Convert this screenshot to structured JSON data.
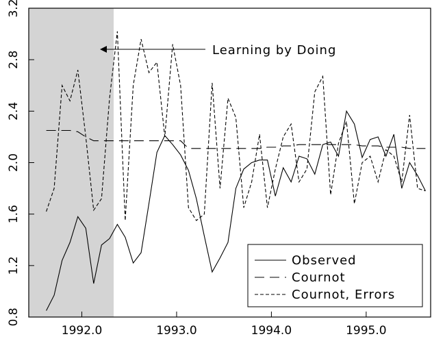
{
  "chart_data": {
    "type": "line",
    "x": [
      1991.625,
      1991.708,
      1991.792,
      1991.875,
      1991.958,
      1992.042,
      1992.125,
      1992.208,
      1992.292,
      1992.375,
      1992.458,
      1992.542,
      1992.625,
      1992.708,
      1992.792,
      1992.875,
      1992.958,
      1993.042,
      1993.125,
      1993.208,
      1993.292,
      1993.375,
      1993.458,
      1993.542,
      1993.625,
      1993.708,
      1993.792,
      1993.875,
      1993.958,
      1994.042,
      1994.125,
      1994.208,
      1994.292,
      1994.375,
      1994.458,
      1994.542,
      1994.625,
      1994.708,
      1994.792,
      1994.875,
      1994.958,
      1995.042,
      1995.125,
      1995.208,
      1995.292,
      1995.375,
      1995.458,
      1995.542,
      1995.625
    ],
    "series": [
      {
        "name": "Observed",
        "color": "#000000",
        "dash": "none",
        "values": [
          0.85,
          0.97,
          1.24,
          1.38,
          1.58,
          1.49,
          1.06,
          1.36,
          1.41,
          1.52,
          1.42,
          1.22,
          1.3,
          1.68,
          2.08,
          2.21,
          2.14,
          2.06,
          1.94,
          1.72,
          1.43,
          1.15,
          1.26,
          1.38,
          1.8,
          1.95,
          2.0,
          2.02,
          2.02,
          1.74,
          1.96,
          1.85,
          2.05,
          2.03,
          1.91,
          2.14,
          2.16,
          2.05,
          2.4,
          2.3,
          2.04,
          2.18,
          2.2,
          2.05,
          2.22,
          1.8,
          2.0,
          1.9,
          1.78
        ]
      },
      {
        "name": "Cournot",
        "color": "#000000",
        "dash": "14,8",
        "values": [
          2.25,
          2.25,
          2.25,
          2.25,
          2.24,
          2.2,
          2.17,
          2.17,
          2.17,
          2.17,
          2.17,
          2.17,
          2.17,
          2.17,
          2.17,
          2.17,
          2.17,
          2.17,
          2.11,
          2.11,
          2.11,
          2.11,
          2.11,
          2.11,
          2.11,
          2.11,
          2.11,
          2.11,
          2.12,
          2.12,
          2.13,
          2.13,
          2.14,
          2.14,
          2.14,
          2.14,
          2.14,
          2.14,
          2.14,
          2.14,
          2.13,
          2.13,
          2.13,
          2.12,
          2.12,
          2.12,
          2.11,
          2.11,
          2.11
        ]
      },
      {
        "name": "Cournot, Errors",
        "color": "#000000",
        "dash": "5,3",
        "values": [
          1.62,
          1.8,
          2.6,
          2.48,
          2.72,
          2.2,
          1.63,
          1.72,
          2.5,
          3.02,
          1.55,
          2.6,
          2.96,
          2.7,
          2.78,
          2.2,
          2.92,
          2.6,
          1.65,
          1.55,
          1.6,
          2.62,
          1.8,
          2.5,
          2.35,
          1.65,
          1.85,
          2.22,
          1.65,
          1.95,
          2.2,
          2.3,
          1.85,
          1.95,
          2.55,
          2.67,
          1.75,
          2.15,
          2.32,
          1.68,
          2.0,
          2.05,
          1.85,
          2.1,
          2.05,
          1.85,
          2.37,
          1.8,
          1.78
        ]
      }
    ],
    "annotation": "Learning by Doing",
    "xlim": [
      1991.44,
      1995.68
    ],
    "xticks": [
      {
        "value": 1992,
        "label": "1992.0"
      },
      {
        "value": 1993,
        "label": "1993.0"
      },
      {
        "value": 1994,
        "label": "1994.0"
      },
      {
        "value": 1995,
        "label": "1995.0"
      }
    ],
    "ylim": [
      0.8,
      3.2
    ],
    "yticks": [
      0.8,
      1.2,
      1.6,
      {
        "value": 2,
        "label": "2.0"
      },
      2.4,
      2.8,
      3.2
    ]
  }
}
